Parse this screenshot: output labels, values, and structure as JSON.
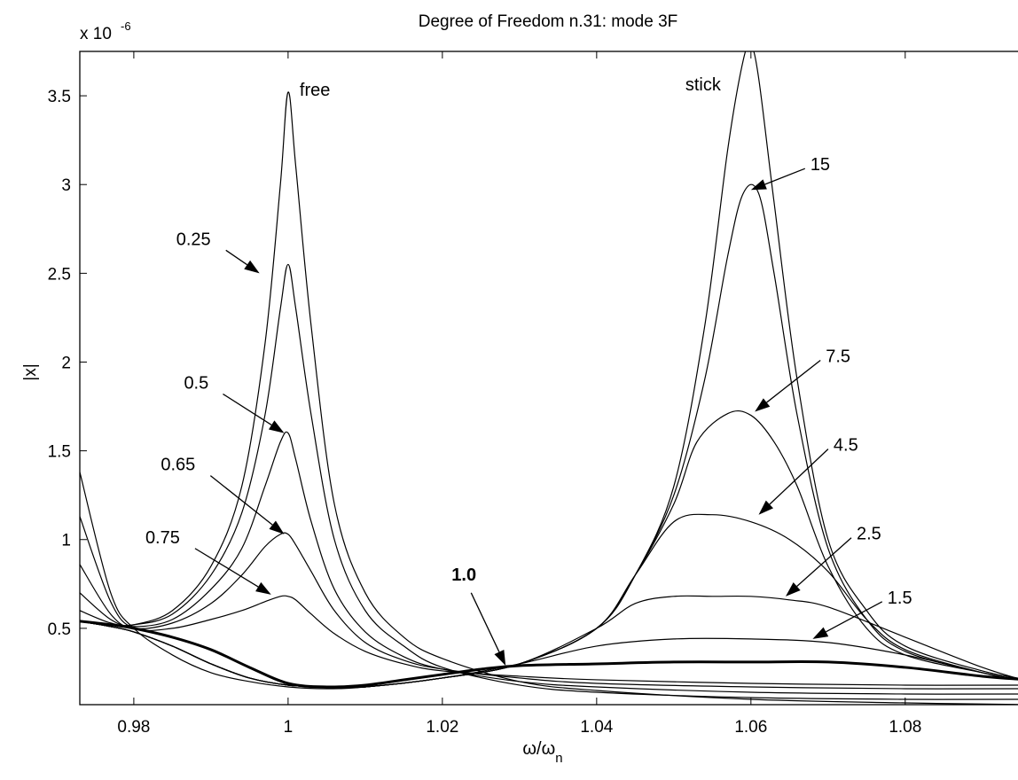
{
  "chart_data": {
    "type": "line",
    "title": "Degree of Freedom n.31: mode 3F",
    "xlabel": "ω/ω",
    "xlabel_sub": "n",
    "ylabel": "|x|",
    "scale_exponent": "x 10",
    "scale_exponent_power": "-6",
    "xlim": [
      0.973,
      1.096
    ],
    "ylim": [
      0.07,
      3.75
    ],
    "xticks": [
      0.98,
      1.0,
      1.02,
      1.04,
      1.06,
      1.08
    ],
    "xtick_labels": [
      "0.98",
      "1",
      "1.02",
      "1.04",
      "1.06",
      "1.08"
    ],
    "yticks": [
      0.5,
      1.0,
      1.5,
      2.0,
      2.5,
      3.0,
      3.5
    ],
    "ytick_labels": [
      "0.5",
      "1",
      "1.5",
      "2",
      "2.5",
      "3",
      "3.5"
    ],
    "grid": false,
    "series": [
      {
        "name": "free",
        "bold": false,
        "x": [
          0.973,
          0.977,
          0.98,
          0.985,
          0.99,
          0.994,
          0.997,
          0.999,
          1.0,
          1.001,
          1.003,
          1.006,
          1.01,
          1.015,
          1.02,
          1.03,
          1.04,
          1.06,
          1.08,
          1.096
        ],
        "y": [
          0.54,
          0.52,
          0.52,
          0.6,
          0.85,
          1.3,
          2.1,
          3.0,
          3.52,
          3.1,
          2.2,
          1.2,
          0.7,
          0.45,
          0.33,
          0.2,
          0.15,
          0.1,
          0.08,
          0.07
        ]
      },
      {
        "name": "0.25",
        "bold": false,
        "x": [
          0.973,
          0.977,
          0.98,
          0.985,
          0.99,
          0.994,
          0.997,
          0.999,
          1.0,
          1.001,
          1.003,
          1.006,
          1.01,
          1.015,
          1.02,
          1.03,
          1.04,
          1.06,
          1.08,
          1.096
        ],
        "y": [
          0.6,
          0.53,
          0.52,
          0.58,
          0.8,
          1.15,
          1.7,
          2.3,
          2.55,
          2.3,
          1.7,
          1.0,
          0.6,
          0.4,
          0.28,
          0.18,
          0.14,
          0.11,
          0.1,
          0.1
        ]
      },
      {
        "name": "0.5",
        "bold": false,
        "x": [
          0.973,
          0.977,
          0.98,
          0.985,
          0.99,
          0.994,
          0.997,
          0.999,
          1.0,
          1.001,
          1.003,
          1.006,
          1.01,
          1.015,
          1.02,
          1.03,
          1.04,
          1.06,
          1.08,
          1.096
        ],
        "y": [
          0.7,
          0.55,
          0.51,
          0.55,
          0.72,
          0.95,
          1.3,
          1.55,
          1.6,
          1.45,
          1.1,
          0.72,
          0.48,
          0.34,
          0.27,
          0.2,
          0.17,
          0.14,
          0.13,
          0.13
        ]
      },
      {
        "name": "0.65",
        "bold": false,
        "x": [
          0.973,
          0.977,
          0.98,
          0.985,
          0.99,
          0.994,
          0.997,
          0.999,
          1.0,
          1.001,
          1.003,
          1.006,
          1.01,
          1.015,
          1.02,
          1.03,
          1.04,
          1.06,
          1.08,
          1.096
        ],
        "y": [
          0.86,
          0.58,
          0.5,
          0.53,
          0.64,
          0.8,
          0.96,
          1.03,
          1.03,
          0.97,
          0.82,
          0.6,
          0.42,
          0.32,
          0.27,
          0.22,
          0.19,
          0.17,
          0.16,
          0.16
        ]
      },
      {
        "name": "0.75",
        "bold": false,
        "x": [
          0.973,
          0.977,
          0.98,
          0.985,
          0.99,
          0.994,
          0.997,
          0.999,
          1.0,
          1.001,
          1.003,
          1.006,
          1.01,
          1.015,
          1.02,
          1.03,
          1.04,
          1.06,
          1.08,
          1.096
        ],
        "y": [
          1.13,
          0.65,
          0.5,
          0.5,
          0.55,
          0.6,
          0.65,
          0.68,
          0.68,
          0.66,
          0.58,
          0.47,
          0.37,
          0.3,
          0.26,
          0.23,
          0.21,
          0.19,
          0.18,
          0.18
        ]
      },
      {
        "name": "1.0",
        "bold": true,
        "x": [
          0.973,
          0.977,
          0.98,
          0.985,
          0.99,
          0.995,
          1.0,
          1.005,
          1.01,
          1.015,
          1.02,
          1.025,
          1.03,
          1.04,
          1.05,
          1.06,
          1.07,
          1.08,
          1.09,
          1.096
        ],
        "y": [
          0.54,
          0.52,
          0.5,
          0.45,
          0.38,
          0.28,
          0.19,
          0.17,
          0.18,
          0.21,
          0.24,
          0.27,
          0.29,
          0.3,
          0.31,
          0.31,
          0.31,
          0.28,
          0.23,
          0.21
        ]
      },
      {
        "name": "1.5",
        "bold": false,
        "x": [
          0.973,
          0.977,
          0.98,
          0.985,
          0.99,
          0.995,
          1.0,
          1.005,
          1.01,
          1.02,
          1.03,
          1.04,
          1.05,
          1.06,
          1.07,
          1.08,
          1.09,
          1.096
        ],
        "y": [
          1.38,
          0.7,
          0.5,
          0.35,
          0.25,
          0.2,
          0.17,
          0.16,
          0.17,
          0.22,
          0.3,
          0.4,
          0.44,
          0.44,
          0.42,
          0.35,
          0.25,
          0.2
        ]
      },
      {
        "name": "2.5",
        "bold": false,
        "x": [
          0.973,
          0.977,
          0.98,
          0.985,
          0.99,
          0.995,
          1.0,
          1.005,
          1.01,
          1.02,
          1.03,
          1.04,
          1.045,
          1.05,
          1.055,
          1.06,
          1.065,
          1.07,
          1.08,
          1.09,
          1.096
        ],
        "y": [
          0.54,
          0.51,
          0.48,
          0.4,
          0.3,
          0.22,
          0.18,
          0.17,
          0.17,
          0.22,
          0.3,
          0.5,
          0.64,
          0.68,
          0.68,
          0.68,
          0.66,
          0.62,
          0.45,
          0.28,
          0.2
        ]
      },
      {
        "name": "4.5",
        "bold": false,
        "x": [
          0.973,
          0.977,
          0.98,
          0.985,
          0.99,
          0.995,
          1.0,
          1.005,
          1.01,
          1.02,
          1.03,
          1.04,
          1.045,
          1.05,
          1.055,
          1.06,
          1.065,
          1.07,
          1.075,
          1.08,
          1.09,
          1.096
        ],
        "y": [
          0.54,
          0.51,
          0.48,
          0.4,
          0.3,
          0.22,
          0.18,
          0.17,
          0.17,
          0.22,
          0.3,
          0.5,
          0.8,
          1.1,
          1.14,
          1.1,
          1.0,
          0.82,
          0.55,
          0.38,
          0.25,
          0.2
        ]
      },
      {
        "name": "7.5",
        "bold": false,
        "x": [
          0.973,
          0.977,
          0.98,
          0.985,
          0.99,
          0.995,
          1.0,
          1.005,
          1.01,
          1.02,
          1.03,
          1.04,
          1.045,
          1.05,
          1.053,
          1.057,
          1.06,
          1.063,
          1.066,
          1.07,
          1.075,
          1.08,
          1.09,
          1.096
        ],
        "y": [
          0.54,
          0.51,
          0.48,
          0.4,
          0.3,
          0.22,
          0.18,
          0.17,
          0.17,
          0.22,
          0.3,
          0.5,
          0.8,
          1.2,
          1.55,
          1.71,
          1.7,
          1.55,
          1.3,
          0.85,
          0.5,
          0.35,
          0.25,
          0.2
        ]
      },
      {
        "name": "15",
        "bold": false,
        "x": [
          0.973,
          0.977,
          0.98,
          0.985,
          0.99,
          0.995,
          1.0,
          1.005,
          1.01,
          1.02,
          1.03,
          1.04,
          1.045,
          1.05,
          1.054,
          1.057,
          1.059,
          1.061,
          1.063,
          1.066,
          1.07,
          1.075,
          1.08,
          1.09,
          1.096
        ],
        "y": [
          0.54,
          0.51,
          0.48,
          0.4,
          0.3,
          0.22,
          0.18,
          0.17,
          0.17,
          0.22,
          0.3,
          0.5,
          0.8,
          1.25,
          1.9,
          2.6,
          2.95,
          2.95,
          2.5,
          1.7,
          0.95,
          0.55,
          0.37,
          0.25,
          0.2
        ]
      },
      {
        "name": "stick",
        "bold": false,
        "x": [
          0.973,
          0.977,
          0.98,
          0.985,
          0.99,
          0.995,
          1.0,
          1.005,
          1.01,
          1.02,
          1.03,
          1.04,
          1.045,
          1.05,
          1.054,
          1.057,
          1.059,
          1.06,
          1.061,
          1.063,
          1.066,
          1.07,
          1.075,
          1.08,
          1.09,
          1.096
        ],
        "y": [
          0.54,
          0.51,
          0.48,
          0.4,
          0.3,
          0.22,
          0.18,
          0.17,
          0.17,
          0.22,
          0.3,
          0.5,
          0.8,
          1.3,
          2.2,
          3.2,
          3.7,
          3.78,
          3.6,
          2.9,
          1.9,
          1.0,
          0.6,
          0.4,
          0.26,
          0.21
        ]
      }
    ],
    "annotations": [
      {
        "text": "free",
        "x": 1.0015,
        "y": 3.5,
        "bold": false,
        "arrow": false
      },
      {
        "text": "stick",
        "x": 1.0515,
        "y": 3.53,
        "bold": false,
        "arrow": false
      },
      {
        "text": "0.25",
        "x": 0.9855,
        "y": 2.66,
        "bold": false,
        "arrow": true,
        "ax": 0.9963,
        "ay": 2.5
      },
      {
        "text": "0.5",
        "x": 0.9865,
        "y": 1.85,
        "bold": false,
        "arrow": true,
        "ax": 0.9995,
        "ay": 1.6
      },
      {
        "text": "0.65",
        "x": 0.9835,
        "y": 1.39,
        "bold": false,
        "arrow": true,
        "ax": 0.9995,
        "ay": 1.03
      },
      {
        "text": "0.75",
        "x": 0.9815,
        "y": 0.98,
        "bold": false,
        "arrow": true,
        "ax": 0.9978,
        "ay": 0.69
      },
      {
        "text": "1.0",
        "x": 1.0212,
        "y": 0.77,
        "bold": true,
        "arrow": true,
        "ax": 1.0282,
        "ay": 0.29
      },
      {
        "text": "15",
        "x": 1.0677,
        "y": 3.08,
        "bold": false,
        "arrow": true,
        "ax": 1.06,
        "ay": 2.97
      },
      {
        "text": "7.5",
        "x": 1.0697,
        "y": 2.0,
        "bold": false,
        "arrow": true,
        "ax": 1.0605,
        "ay": 1.72
      },
      {
        "text": "4.5",
        "x": 1.0707,
        "y": 1.5,
        "bold": false,
        "arrow": true,
        "ax": 1.061,
        "ay": 1.14
      },
      {
        "text": "2.5",
        "x": 1.0737,
        "y": 1.0,
        "bold": false,
        "arrow": true,
        "ax": 1.0645,
        "ay": 0.68
      },
      {
        "text": "1.5",
        "x": 1.0777,
        "y": 0.64,
        "bold": false,
        "arrow": true,
        "ax": 1.068,
        "ay": 0.44
      }
    ]
  }
}
